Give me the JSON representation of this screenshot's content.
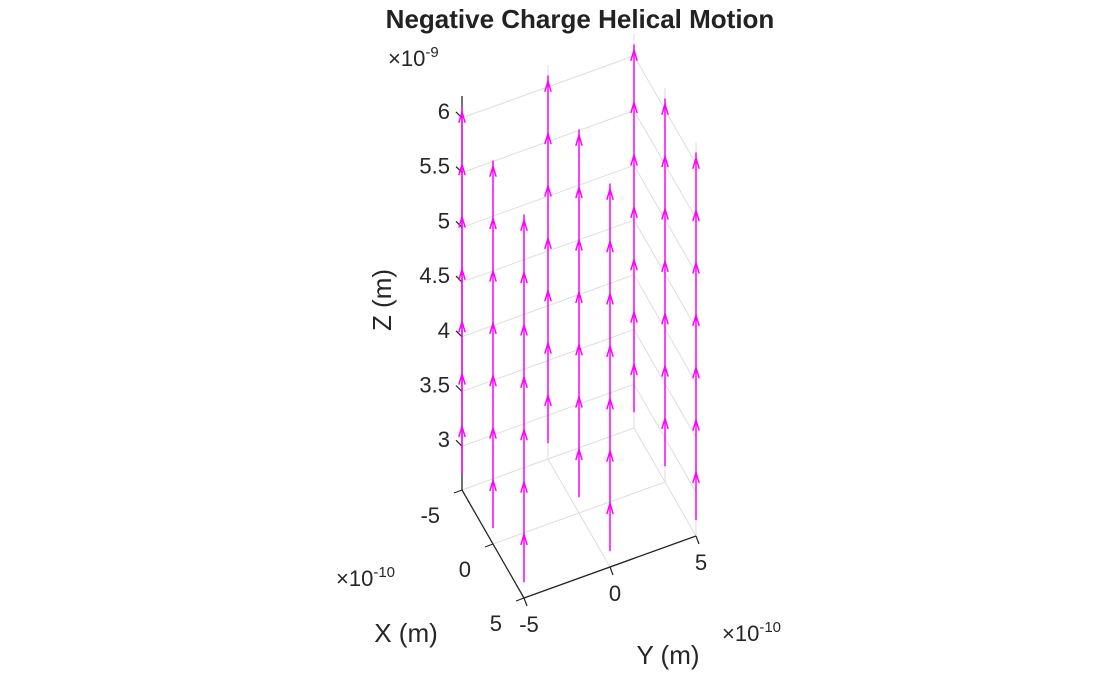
{
  "chart_data": {
    "type": "quiver3",
    "title": "Negative Charge Helical Motion",
    "xlabel": "X (m)",
    "ylabel": "Y (m)",
    "zlabel": "Z (m)",
    "x_exponent_label": "×10",
    "x_exponent_power": "-10",
    "y_exponent_label": "×10",
    "y_exponent_power": "-10",
    "z_exponent_label": "×10",
    "z_exponent_power": "-9",
    "xlim": [
      -5e-10,
      5e-10
    ],
    "ylim": [
      -5e-10,
      5e-10
    ],
    "zlim": [
      2.6e-09,
      6.2e-09
    ],
    "x_ticks": [
      -5e-10,
      0,
      5e-10
    ],
    "x_tick_labels": [
      "-5",
      "0",
      "5"
    ],
    "y_ticks": [
      -5e-10,
      0,
      5e-10
    ],
    "y_tick_labels": [
      "-5",
      "0",
      "5"
    ],
    "z_ticks": [
      3e-09,
      3.5e-09,
      4e-09,
      4.5e-09,
      5e-09,
      5.5e-09,
      6e-09
    ],
    "z_tick_labels": [
      "3",
      "3.5",
      "4",
      "4.5",
      "5",
      "5.5",
      "6"
    ],
    "grid": true,
    "arrow_color": "#ff00ff",
    "grid_x": [
      -5e-10,
      0,
      5e-10
    ],
    "grid_y": [
      -5e-10,
      0,
      5e-10
    ],
    "z_from": 2.75e-09,
    "z_to": 6.1e-09,
    "arrow_heads_per_column": 7
  }
}
